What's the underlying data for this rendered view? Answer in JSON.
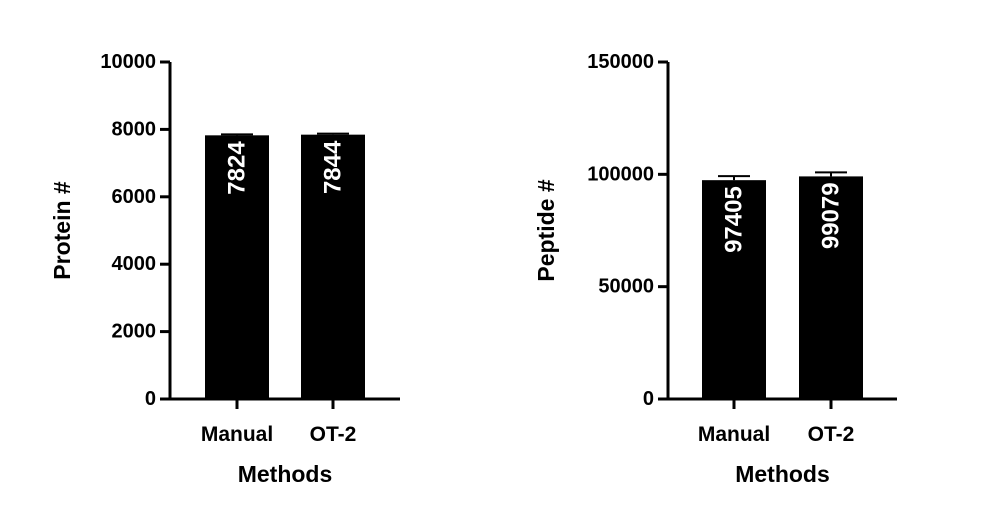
{
  "chart_data": [
    {
      "type": "bar",
      "categories": [
        "Manual",
        "OT-2"
      ],
      "values": [
        7824,
        7844
      ],
      "error_bars": [
        30,
        30
      ],
      "data_labels": [
        "7824",
        "7844"
      ],
      "xlabel": "Methods",
      "ylabel": "Protein #",
      "ylim": [
        0,
        10000
      ],
      "yticks": [
        0,
        2000,
        4000,
        6000,
        8000,
        10000
      ],
      "ytick_labels": [
        "0",
        "2000",
        "4000",
        "6000",
        "8000",
        "10000"
      ],
      "bar_color": "#000000",
      "grid": false
    },
    {
      "type": "bar",
      "categories": [
        "Manual",
        "OT-2"
      ],
      "values": [
        97405,
        99079
      ],
      "error_bars": [
        1800,
        1800
      ],
      "data_labels": [
        "97405",
        "99079"
      ],
      "xlabel": "Methods",
      "ylabel": "Peptide #",
      "ylim": [
        0,
        150000
      ],
      "yticks": [
        0,
        50000,
        100000,
        150000
      ],
      "ytick_labels": [
        "0",
        "50000",
        "100000",
        "150000"
      ],
      "bar_color": "#000000",
      "grid": false
    }
  ]
}
